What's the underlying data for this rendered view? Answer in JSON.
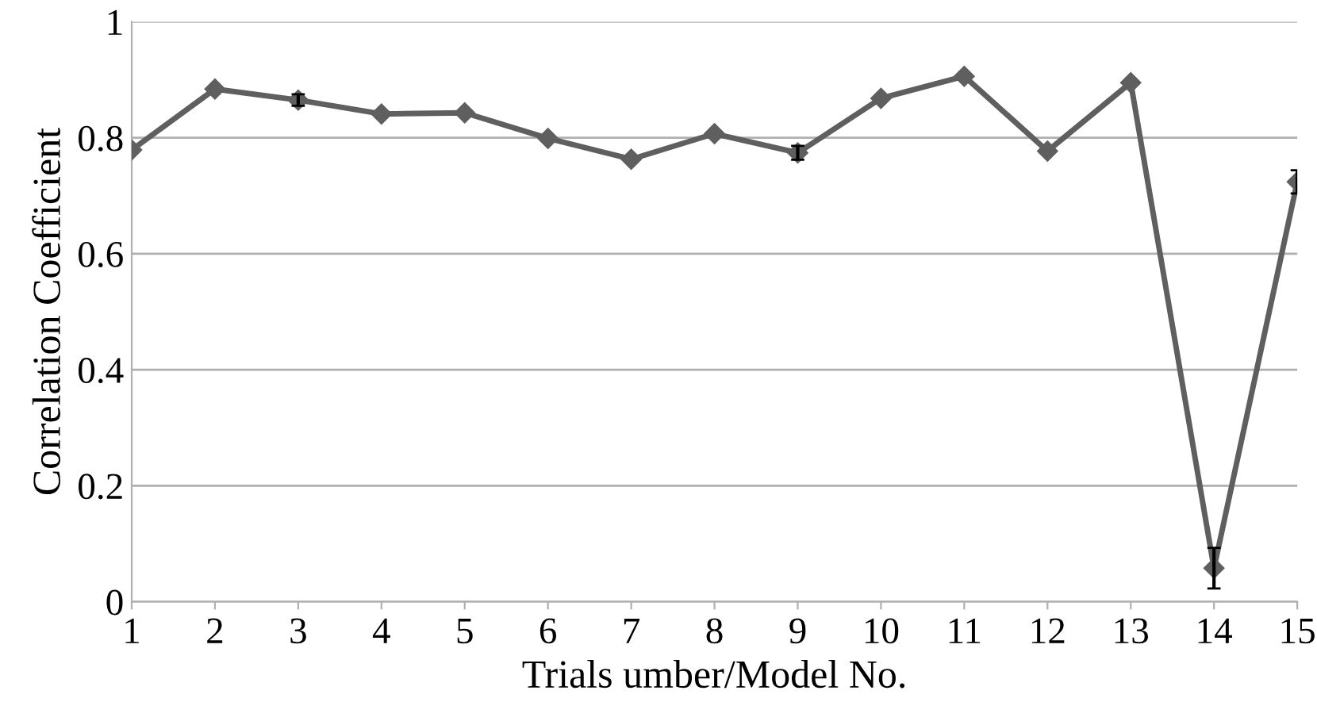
{
  "chart_data": {
    "type": "line",
    "xlabel": "Trials umber/Model No.",
    "ylabel": "Correlation Coefficient",
    "x": [
      1,
      2,
      3,
      4,
      5,
      6,
      7,
      8,
      9,
      10,
      11,
      12,
      13,
      14,
      15
    ],
    "series": [
      {
        "color": "#5f5f5f",
        "values": [
          0.779,
          0.884,
          0.865,
          0.841,
          0.843,
          0.799,
          0.763,
          0.807,
          0.774,
          0.868,
          0.906,
          0.777,
          0.895,
          0.058,
          0.724
        ],
        "errors": [
          null,
          null,
          0.01,
          null,
          null,
          null,
          null,
          null,
          0.012,
          null,
          null,
          null,
          null,
          0.035,
          0.02
        ]
      }
    ],
    "xlim": [
      1,
      15
    ],
    "xticks": [
      1,
      2,
      3,
      4,
      5,
      6,
      7,
      8,
      9,
      10,
      11,
      12,
      13,
      14,
      15
    ],
    "ylim": [
      0,
      1
    ],
    "yticks": [
      0,
      0.2,
      0.4,
      0.6,
      0.8,
      1
    ],
    "grid": "y",
    "marker": "diamond",
    "line_style": "solid"
  }
}
